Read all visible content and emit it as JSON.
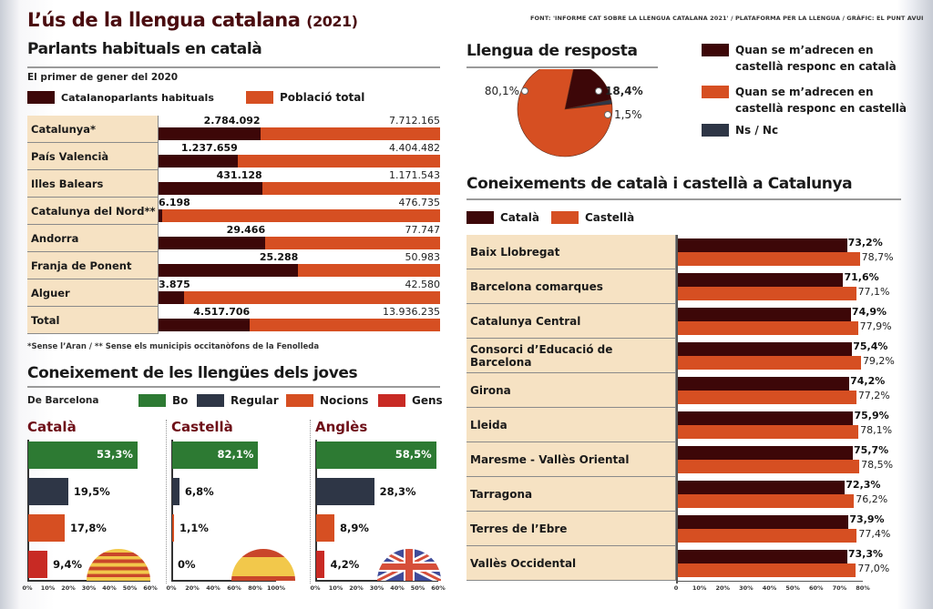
{
  "header": {
    "title": "L’ús de la llengua catalana",
    "year": "(2021)",
    "source": "FONT: 'INFORME CAT SOBRE LA LLENGUA CATALANA 2021' / PLATAFORMA PER LA LLENGUA / GRÀFIC: EL PUNT AVUI"
  },
  "colors": {
    "dark": "#3d0708",
    "orange": "#d64f22",
    "navy": "#2e3646",
    "green": "#2d7a33",
    "red": "#c82a24",
    "label_bg": "#f6e2c3"
  },
  "chart_data": [
    {
      "id": "parlants",
      "type": "bar",
      "title": "Parlants habituals en català",
      "subtitle": "El primer de gener del 2020",
      "legend": [
        "Catalanoparlants habituals",
        "Població total"
      ],
      "categories": [
        "Catalunya*",
        "País Valencià",
        "Illes Balears",
        "Catalunya del Nord**",
        "Andorra",
        "Franja de Ponent",
        "Alguer",
        "Total"
      ],
      "series": [
        {
          "name": "Catalanoparlants habituals",
          "values": [
            2784092,
            1237659,
            431128,
            6198,
            29466,
            25288,
            3875,
            4517706
          ],
          "labels": [
            "2.784.092",
            "1.237.659",
            "431.128",
            "6.198",
            "29.466",
            "25.288",
            "3.875",
            "4.517.706"
          ]
        },
        {
          "name": "Població total",
          "values": [
            7712165,
            4404482,
            1171543,
            476735,
            77747,
            50983,
            42580,
            13936235
          ],
          "labels": [
            "7.712.165",
            "4.404.482",
            "1.171.543",
            "476.735",
            "77.747",
            "50.983",
            "42.580",
            "13.936.235"
          ]
        }
      ],
      "footnote": "*Sense l’Aran / ** Sense els municipis occitanòfons de la Fenolleda"
    },
    {
      "id": "resposta",
      "type": "pie",
      "title": "Llengua de resposta",
      "slices": [
        {
          "name": "Quan se m’adrecen en castellà responc en català",
          "value": 18.4,
          "label": "18,4%"
        },
        {
          "name": "Quan se m’adrecen  en castellà responc en castellà",
          "value": 80.1,
          "label": "80,1%"
        },
        {
          "name": "Ns / Nc",
          "value": 1.5,
          "label": "1,5%"
        }
      ]
    },
    {
      "id": "joves",
      "type": "bar",
      "title": "Coneixement de les llengües dels joves",
      "subtitle": "De Barcelona",
      "legend": [
        "Bo",
        "Regular",
        "Nocions",
        "Gens"
      ],
      "panels": [
        {
          "name": "Català",
          "values": [
            53.3,
            19.5,
            17.8,
            9.4
          ],
          "labels": [
            "53,3%",
            "19,5%",
            "17,8%",
            "9,4%"
          ],
          "xlim": [
            0,
            60
          ],
          "ticks": [
            "0%",
            "10%",
            "20%",
            "30%",
            "40%",
            "50%",
            "60%"
          ]
        },
        {
          "name": "Castellà",
          "values": [
            82.1,
            6.8,
            1.1,
            0
          ],
          "labels": [
            "82,1%",
            "6,8%",
            "1,1%",
            "0%"
          ],
          "xlim": [
            0,
            100
          ],
          "ticks": [
            "0%",
            "20%",
            "40%",
            "60%",
            "80%",
            "100%"
          ]
        },
        {
          "name": "Anglès",
          "values": [
            58.5,
            28.3,
            8.9,
            4.2
          ],
          "labels": [
            "58,5%",
            "28,3%",
            "8,9%",
            "4,2%"
          ],
          "xlim": [
            0,
            60
          ],
          "ticks": [
            "0%",
            "10%",
            "20%",
            "30%",
            "40%",
            "50%",
            "60%"
          ]
        }
      ]
    },
    {
      "id": "coneixements",
      "type": "bar",
      "title": "Coneixements de català i castellà a Catalunya",
      "legend": [
        "Català",
        "Castellà"
      ],
      "xlim": [
        0,
        80
      ],
      "ticks": [
        "0",
        "10%",
        "20%",
        "30%",
        "40%",
        "50%",
        "60%",
        "70%",
        "80%"
      ],
      "categories": [
        "Baix Llobregat",
        "Barcelona comarques",
        "Catalunya Central",
        "Consorci d’Educació de Barcelona",
        "Girona",
        "Lleida",
        "Maresme - Vallès Oriental",
        "Tarragona",
        "Terres de l’Ebre",
        "Vallès Occidental"
      ],
      "series": [
        {
          "name": "Català",
          "values": [
            73.2,
            71.6,
            74.9,
            75.4,
            74.2,
            75.9,
            75.7,
            72.3,
            73.9,
            73.3
          ],
          "labels": [
            "73,2%",
            "71,6%",
            "74,9%",
            "75,4%",
            "74,2%",
            "75,9%",
            "75,7%",
            "72,3%",
            "73,9%",
            "73,3%"
          ]
        },
        {
          "name": "Castellà",
          "values": [
            78.7,
            77.1,
            77.9,
            79.2,
            77.2,
            78.1,
            78.5,
            76.2,
            77.4,
            77.0
          ],
          "labels": [
            "78,7%",
            "77,1%",
            "77,9%",
            "79,2%",
            "77,2%",
            "78,1%",
            "78,5%",
            "76,2%",
            "77,4%",
            "77,0%"
          ]
        }
      ]
    }
  ]
}
